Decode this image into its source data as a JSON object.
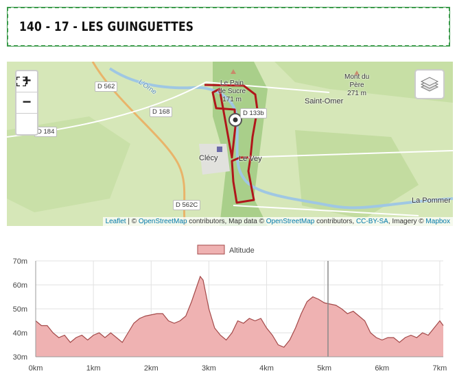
{
  "header": {
    "title": "140 - 17 - LES GUINGUETTES"
  },
  "map": {
    "controls": {
      "zoom_in": "+",
      "zoom_out": "−"
    },
    "roads": [
      "D 562",
      "D 168",
      "D 184",
      "D 133b",
      "D 562C"
    ],
    "places": {
      "clecy": "Clécy",
      "le_vey": "Le Vey",
      "saint_omer": "Saint-Omer",
      "la_pommer": "La Pommer",
      "river": "L'Orne"
    },
    "peaks": [
      {
        "lines": [
          "Le Pain",
          "de Sucre",
          "171 m"
        ]
      },
      {
        "lines": [
          "Mont du",
          "Père",
          "271 m"
        ]
      }
    ],
    "attribution": [
      "Leaflet",
      "| ©",
      "OpenStreetMap",
      "contributors, Map data ©",
      "OpenStreetMap",
      "contributors,",
      "CC-BY-SA",
      ", Imagery ©",
      "Mapbox"
    ]
  },
  "chart_data": {
    "type": "area",
    "x": [
      0,
      0.1,
      0.2,
      0.3,
      0.4,
      0.5,
      0.6,
      0.7,
      0.8,
      0.9,
      1.0,
      1.1,
      1.2,
      1.3,
      1.4,
      1.5,
      1.6,
      1.7,
      1.8,
      1.9,
      2.0,
      2.1,
      2.2,
      2.3,
      2.4,
      2.5,
      2.6,
      2.7,
      2.8,
      2.85,
      2.9,
      3.0,
      3.1,
      3.2,
      3.3,
      3.4,
      3.5,
      3.6,
      3.7,
      3.8,
      3.9,
      4.0,
      4.1,
      4.2,
      4.3,
      4.4,
      4.5,
      4.6,
      4.7,
      4.8,
      4.9,
      5.0,
      5.1,
      5.2,
      5.3,
      5.4,
      5.5,
      5.6,
      5.7,
      5.8,
      5.9,
      6.0,
      6.1,
      6.2,
      6.3,
      6.4,
      6.5,
      6.6,
      6.7,
      6.8,
      6.9,
      7.0,
      7.06
    ],
    "series": [
      {
        "name": "Altitude",
        "color": "#efb2b2",
        "line_color": "#a34848",
        "values": [
          45,
          43,
          43,
          40,
          38,
          39,
          36,
          38,
          39,
          37,
          39,
          40,
          38,
          40,
          38,
          36,
          40,
          44,
          46,
          47,
          47.5,
          48,
          48,
          45,
          44,
          45,
          47,
          53,
          60,
          63.5,
          62,
          50,
          42,
          39,
          37,
          40,
          45,
          44,
          46,
          45,
          46,
          42,
          39,
          35,
          34,
          37,
          42,
          48,
          53,
          55,
          54,
          52.5,
          52,
          51.5,
          50,
          48,
          49,
          47,
          45,
          40,
          38,
          37,
          38,
          38,
          36,
          38,
          39,
          38,
          40,
          39,
          42,
          45,
          43
        ]
      }
    ],
    "xlim": [
      0,
      7.06
    ],
    "xticks": [
      {
        "value": 0,
        "label": "0km"
      },
      {
        "value": 1,
        "label": "1km"
      },
      {
        "value": 2,
        "label": "2km"
      },
      {
        "value": 3,
        "label": "3km"
      },
      {
        "value": 4,
        "label": "4km"
      },
      {
        "value": 5,
        "label": "5km"
      },
      {
        "value": 6,
        "label": "6km"
      },
      {
        "value": 7,
        "label": "7km"
      }
    ],
    "ylim": [
      30,
      70
    ],
    "yticks": [
      {
        "value": 30,
        "label": "30m"
      },
      {
        "value": 40,
        "label": "40m"
      },
      {
        "value": 50,
        "label": "50m"
      },
      {
        "value": 60,
        "label": "60m"
      },
      {
        "value": 70,
        "label": "70m"
      }
    ],
    "grid": true,
    "legend": "top"
  }
}
